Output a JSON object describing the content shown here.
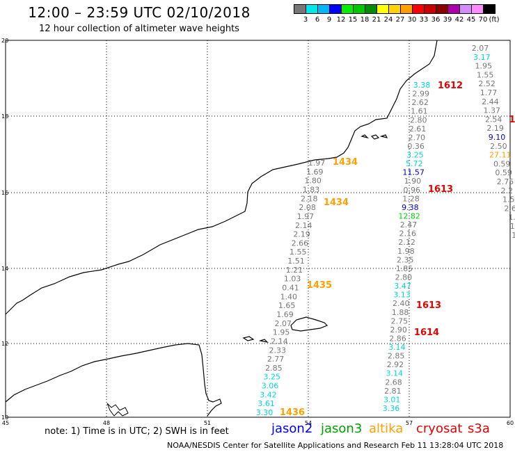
{
  "header": {
    "title": "12:00 – 23:59 UTC 02/10/2018",
    "subtitle": "12 hour collection of altimeter wave heights"
  },
  "colorbar": {
    "unit": "(ft)",
    "bins": [
      {
        "color": "#777777",
        "label": "3"
      },
      {
        "color": "#00e7e7",
        "label": "6"
      },
      {
        "color": "#00b7ff",
        "label": "9"
      },
      {
        "color": "#0000ff",
        "label": "12"
      },
      {
        "color": "#00f000",
        "label": "15"
      },
      {
        "color": "#00c800",
        "label": "18"
      },
      {
        "color": "#008c00",
        "label": "21"
      },
      {
        "color": "#ffff00",
        "label": "24"
      },
      {
        "color": "#ffd200",
        "label": "27"
      },
      {
        "color": "#ffa000",
        "label": "30"
      },
      {
        "color": "#ff0000",
        "label": "33"
      },
      {
        "color": "#c80000",
        "label": "36"
      },
      {
        "color": "#8c0000",
        "label": "39"
      },
      {
        "color": "#aa00aa",
        "label": "42"
      },
      {
        "color": "#d28cff",
        "label": "45"
      },
      {
        "color": "#ff8cff",
        "label": "70"
      },
      {
        "color": "#000000",
        "label": ""
      }
    ]
  },
  "axes": {
    "lat_labels": [
      "20",
      "18",
      "16",
      "14",
      "12",
      "10"
    ],
    "lon_labels": [
      "45",
      "48",
      "51",
      "54",
      "57",
      "60"
    ]
  },
  "tracks": {
    "a": {
      "values": [
        "1.97",
        "1.69",
        "1.80",
        "1.83",
        "2.18",
        "2.08",
        "1.97",
        "2.14",
        "2.19",
        "2.66",
        "1.55",
        "1.51",
        "1.21",
        "1.03",
        "0.41",
        "1.40",
        "1.65",
        "1.69",
        "2.07",
        "1.95",
        "2.14",
        "2.33",
        "2.77",
        "2.85",
        "3.25",
        "3.06",
        "3.42",
        "3.61",
        "3.30"
      ],
      "colors": [
        "#777777",
        "#777777",
        "#777777",
        "#777777",
        "#777777",
        "#777777",
        "#777777",
        "#777777",
        "#777777",
        "#777777",
        "#777777",
        "#777777",
        "#777777",
        "#777777",
        "#777777",
        "#777777",
        "#777777",
        "#777777",
        "#777777",
        "#777777",
        "#777777",
        "#777777",
        "#777777",
        "#777777",
        "#00d7d7",
        "#00d7d7",
        "#00d7d7",
        "#00d7d7",
        "#00d7d7"
      ]
    },
    "b": {
      "values": [
        "3.38",
        "2.99",
        "2.62",
        "1.61",
        "2.80",
        "2.61",
        "2.70",
        "0.36",
        "3.25",
        "5.72",
        "11.57",
        "1.90",
        "0.96",
        "1.28",
        "9.38",
        "12.82",
        "2.47",
        "2.16",
        "2.12",
        "1.98",
        "2.35",
        "1.85",
        "2.80",
        "3.47",
        "3.13",
        "2.40",
        "1.88",
        "2.75",
        "2.90",
        "2.86",
        "3.14",
        "2.85",
        "2.92",
        "3.14",
        "2.68",
        "2.81",
        "3.01",
        "3.36"
      ],
      "colors": [
        "#00d7d7",
        "#777777",
        "#777777",
        "#777777",
        "#777777",
        "#777777",
        "#777777",
        "#777777",
        "#00d7d7",
        "#00d7d7",
        "#0000cc",
        "#777777",
        "#777777",
        "#777777",
        "#0000cc",
        "#00d200",
        "#777777",
        "#777777",
        "#777777",
        "#777777",
        "#777777",
        "#777777",
        "#777777",
        "#00d7d7",
        "#00d7d7",
        "#777777",
        "#777777",
        "#777777",
        "#777777",
        "#777777",
        "#00d7d7",
        "#777777",
        "#777777",
        "#00d7d7",
        "#777777",
        "#777777",
        "#00d7d7",
        "#00d7d7"
      ]
    },
    "c": {
      "values": [
        "2.07",
        "3.17",
        "1.95",
        "1.55",
        "2.52",
        "1.77",
        "2.44",
        "1.37",
        "2.54",
        "2.19",
        "9.10",
        "2.50",
        "27.11",
        "0.59",
        "0.59",
        "2.75",
        "2.2",
        "1.5",
        "2.6",
        "1.",
        "1.",
        "1."
      ],
      "colors": [
        "#777777",
        "#00d7d7",
        "#777777",
        "#777777",
        "#777777",
        "#777777",
        "#777777",
        "#777777",
        "#777777",
        "#777777",
        "#0000cc",
        "#777777",
        "#ffa000",
        "#777777",
        "#777777",
        "#777777",
        "#777777",
        "#777777",
        "#777777",
        "#777777",
        "#777777",
        "#777777"
      ]
    }
  },
  "pass_times": [
    {
      "text": "1612",
      "color": "#e60000"
    },
    {
      "text": "1434",
      "color": "#ffa000"
    },
    {
      "text": "1613",
      "color": "#e60000"
    },
    {
      "text": "1434",
      "color": "#ffa000"
    },
    {
      "text": "1435",
      "color": "#ffa000"
    },
    {
      "text": "1613",
      "color": "#e60000"
    },
    {
      "text": "1614",
      "color": "#e60000"
    },
    {
      "text": "1436",
      "color": "#ffa000"
    },
    {
      "text": "1",
      "color": "#e60000"
    }
  ],
  "footer": {
    "note": "note:  1) Time is in UTC; 2) SWH is in feet",
    "satellites": [
      {
        "name": "jason2",
        "color": "#0000ff"
      },
      {
        "name": "jason3",
        "color": "#00a000"
      },
      {
        "name": "altika",
        "color": "#ffa000"
      },
      {
        "name": "cryosat",
        "color": "#e60000"
      },
      {
        "name": "s3a",
        "color": "#e60000"
      }
    ],
    "credit": "NOAA/NESDIS Center for Satellite Applications and Research     Feb 11 13:28:04 UTC 2018"
  }
}
